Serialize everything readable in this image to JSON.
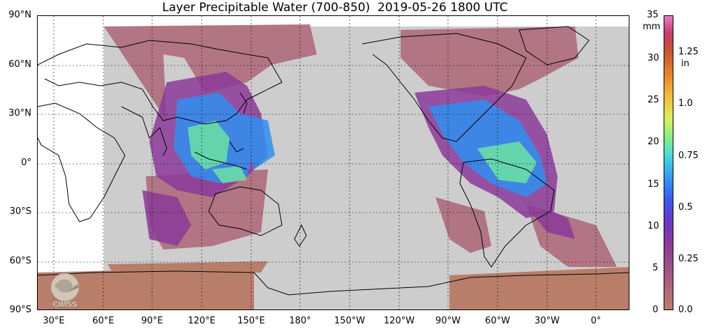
{
  "title": "Layer Precipitable Water (700-850)  2019-05-26 1800 UTC",
  "map": {
    "lat_labels": [
      "90°N",
      "60°N",
      "30°N",
      "0°",
      "30°S",
      "60°S",
      "90°S"
    ],
    "lon_labels": [
      "30°E",
      "60°E",
      "90°E",
      "120°E",
      "150°E",
      "180°",
      "150°W",
      "120°W",
      "90°W",
      "60°W",
      "30°W",
      "0°"
    ],
    "colors": {
      "land_background": "#ffffff",
      "no_data": "#cdcdcd",
      "low_pw": "#b87e6a",
      "mid_pw": "#9b3fa0",
      "high_pw": "#2f9bf3",
      "peak_pw": "#7cf08c",
      "coastline": "#000000"
    }
  },
  "colorbar": {
    "mm_unit": "mm",
    "in_unit_line1": "1.25",
    "in_unit_line2": "in",
    "mm_ticks": [
      "35",
      "30",
      "25",
      "20",
      "15",
      "10",
      "5",
      "0"
    ],
    "in_ticks": [
      "1.0",
      "0.75",
      "0.5",
      "0.25",
      "0.0"
    ]
  },
  "logo": {
    "text": "CIMSS",
    "icon": "cimss-globe-logo-icon"
  }
}
